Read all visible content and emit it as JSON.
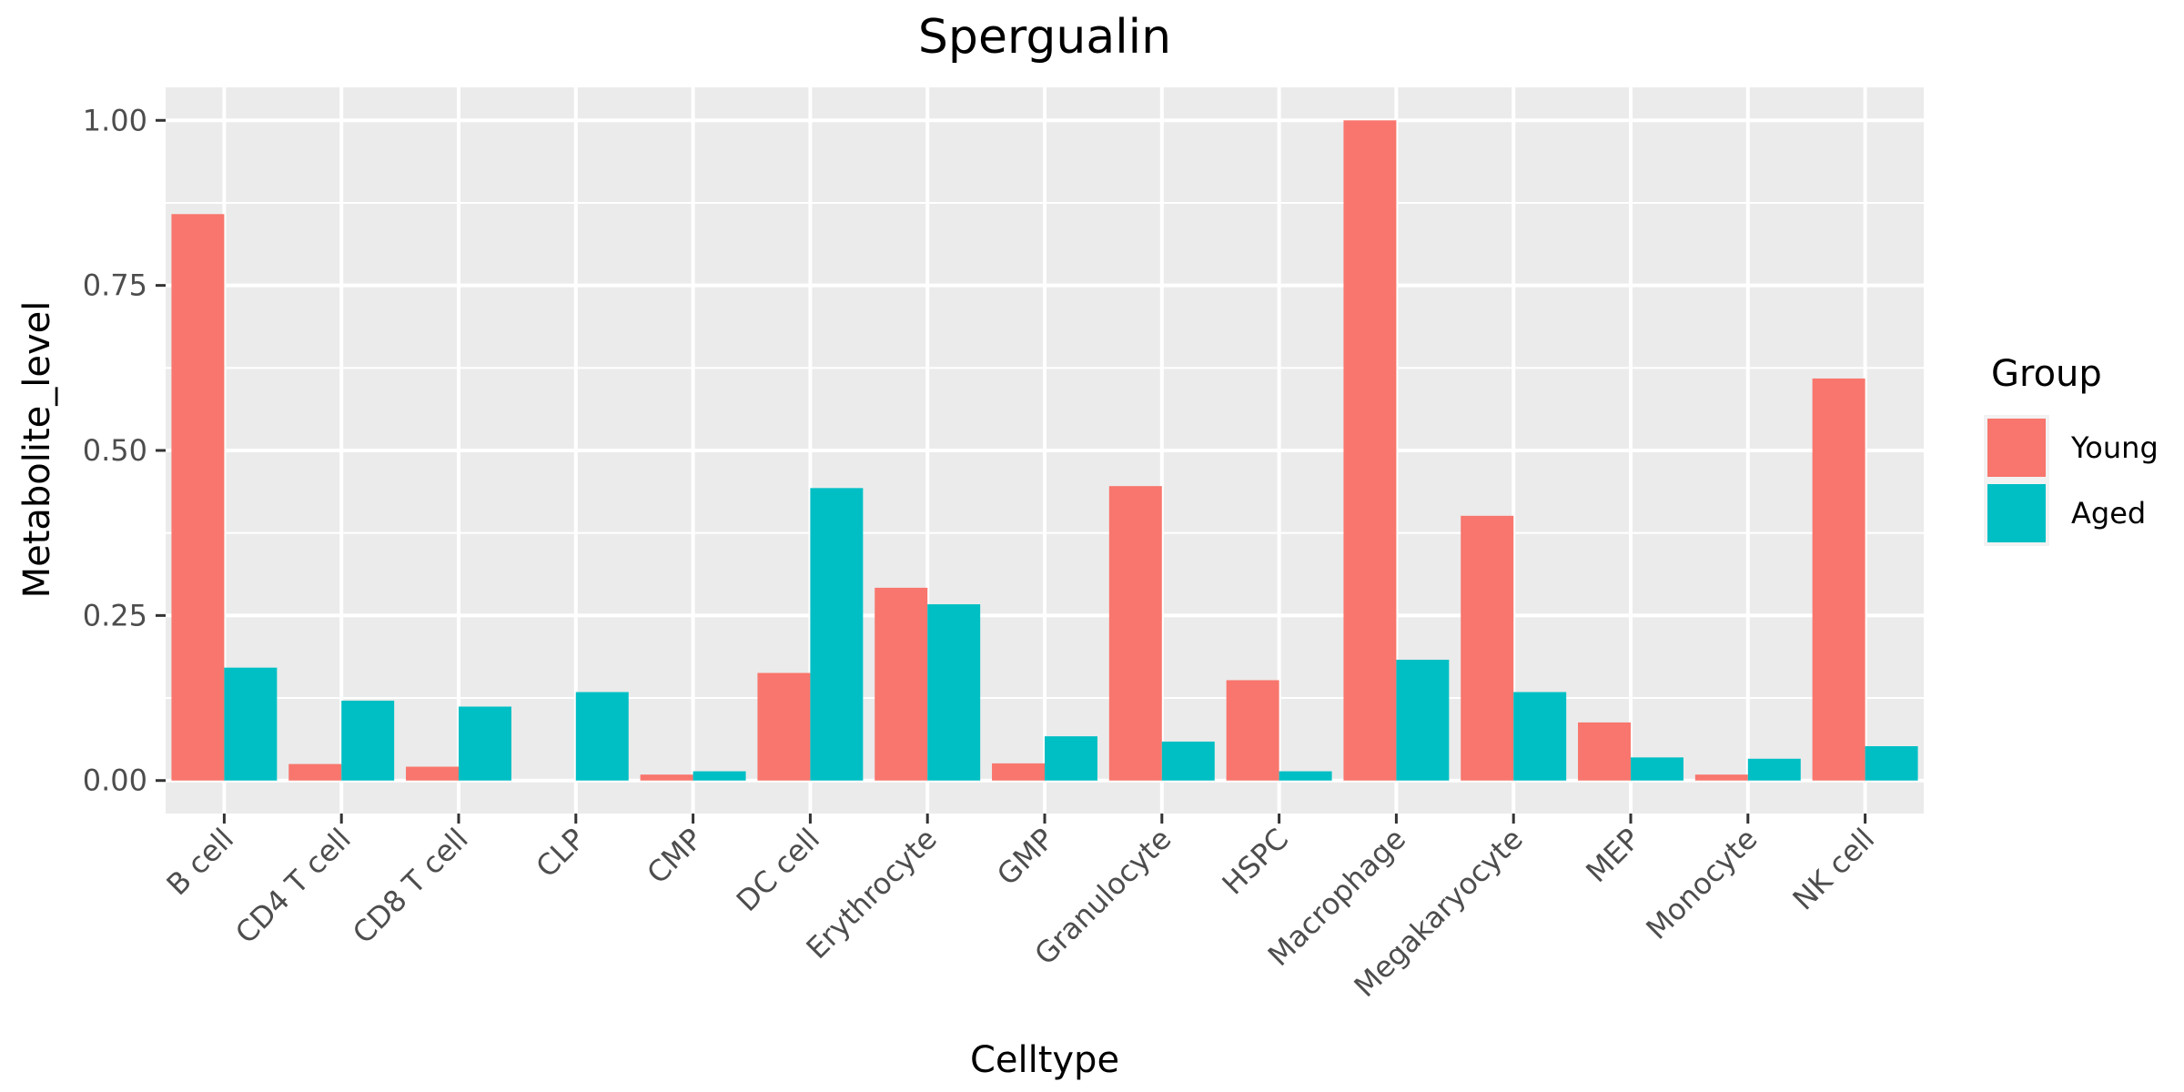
{
  "chart_data": {
    "type": "bar",
    "title": "Spergualin",
    "xlabel": "Celltype",
    "ylabel": "Metabolite_level",
    "ylim": [
      -0.05,
      1.05
    ],
    "yticks": [
      0.0,
      0.25,
      0.5,
      0.75,
      1.0
    ],
    "ytick_labels": [
      "0.00",
      "0.25",
      "0.50",
      "0.75",
      "1.00"
    ],
    "categories": [
      "B cell",
      "CD4 T cell",
      "CD8 T cell",
      "CLP",
      "CMP",
      "DC cell",
      "Erythrocyte",
      "GMP",
      "Granulocyte",
      "HSPC",
      "Macrophage",
      "Megakaryocyte",
      "MEP",
      "Monocyte",
      "NK cell"
    ],
    "series": [
      {
        "name": "Young",
        "color": "#F8766D",
        "values": [
          0.858,
          0.025,
          0.021,
          0.0,
          0.009,
          0.163,
          0.292,
          0.026,
          0.446,
          0.152,
          1.0,
          0.401,
          0.088,
          0.009,
          0.609
        ]
      },
      {
        "name": "Aged",
        "color": "#00BFC4",
        "values": [
          0.171,
          0.121,
          0.112,
          0.134,
          0.014,
          0.443,
          0.267,
          0.067,
          0.059,
          0.014,
          0.183,
          0.134,
          0.035,
          0.033,
          0.052
        ]
      }
    ],
    "legend": {
      "title": "Group",
      "position": "right"
    },
    "grid": true,
    "panel_background": "#EBEBEB"
  }
}
